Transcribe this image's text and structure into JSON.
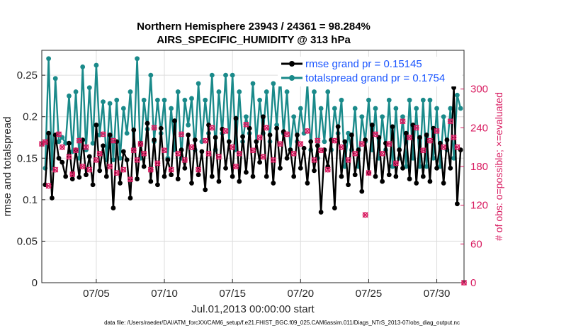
{
  "chart_data": {
    "type": "line",
    "title_line1": "Northern Hemisphere 23943 / 24361 = 98.284%",
    "title_line2": "AIRS_SPECIFIC_HUMIDITY @ 313 hPa",
    "xlabel": "Jul.01,2013 00:00:00 start",
    "ylabel": "rmse and totalspread",
    "y2label": "# of obs: o=possible; ×=evaluated",
    "footnote": "data file: /Users/raeder/DAI/ATM_forcXX/CAM6_setup/f.e21.FHIST_BGC.f09_025.CAM6assim.011/Diags_NTrS_2013-07/obs_diag_output.nc",
    "xlim": [
      1,
      32
    ],
    "ylim": [
      0,
      0.28
    ],
    "y2lim": [
      0,
      360
    ],
    "x_ticks": [
      5,
      10,
      15,
      20,
      25,
      30
    ],
    "x_tick_labels": [
      "07/05",
      "07/10",
      "07/15",
      "07/20",
      "07/25",
      "07/30"
    ],
    "y_ticks": [
      0,
      0.05,
      0.1,
      0.15,
      0.2,
      0.25
    ],
    "y_tick_labels": [
      "0",
      "0.05",
      "0.1",
      "0.15",
      "0.2",
      "0.25"
    ],
    "y2_ticks": [
      0,
      60,
      120,
      180,
      240,
      300
    ],
    "y2_tick_labels": [
      "0",
      "60",
      "120",
      "180",
      "240",
      "300"
    ],
    "grid": true,
    "legend_position": "top-right",
    "colors": {
      "rmse": "#000000",
      "spread": "#1a8a8a",
      "obs": "#d81b60",
      "legend_text": "#1a55ff"
    },
    "x": [
      1.25,
      1.5,
      1.75,
      2.0,
      2.25,
      2.5,
      2.75,
      3.0,
      3.25,
      3.5,
      3.75,
      4.0,
      4.25,
      4.5,
      4.75,
      5.0,
      5.25,
      5.5,
      5.75,
      6.0,
      6.25,
      6.5,
      6.75,
      7.0,
      7.25,
      7.5,
      7.75,
      8.0,
      8.25,
      8.5,
      8.75,
      9.0,
      9.25,
      9.5,
      9.75,
      10.0,
      10.25,
      10.5,
      10.75,
      11.0,
      11.25,
      11.5,
      11.75,
      12.0,
      12.25,
      12.5,
      12.75,
      13.0,
      13.25,
      13.5,
      13.75,
      14.0,
      14.25,
      14.5,
      14.75,
      15.0,
      15.25,
      15.5,
      15.75,
      16.0,
      16.25,
      16.5,
      16.75,
      17.0,
      17.25,
      17.5,
      17.75,
      18.0,
      18.25,
      18.5,
      18.75,
      19.0,
      19.25,
      19.5,
      19.75,
      20.0,
      20.25,
      20.5,
      20.75,
      21.0,
      21.25,
      21.5,
      21.75,
      22.0,
      22.25,
      22.5,
      22.75,
      23.0,
      23.25,
      23.5,
      23.75,
      24.0,
      24.25,
      24.5,
      24.75,
      25.0,
      25.25,
      25.5,
      25.75,
      26.0,
      26.25,
      26.5,
      26.75,
      27.0,
      27.25,
      27.5,
      27.75,
      28.0,
      28.25,
      28.5,
      28.75,
      29.0,
      29.25,
      29.5,
      29.75,
      30.0,
      30.25,
      30.5,
      30.75,
      31.0,
      31.25,
      31.5,
      31.75
    ],
    "series": [
      {
        "name": "rmse grand pr = 0.15145",
        "values": [
          0.118,
          0.18,
          0.102,
          0.178,
          0.15,
          0.145,
          0.128,
          0.168,
          0.125,
          0.16,
          0.127,
          0.172,
          0.13,
          0.152,
          0.118,
          0.19,
          0.135,
          0.165,
          0.128,
          0.178,
          0.09,
          0.17,
          0.12,
          0.158,
          0.148,
          0.102,
          0.184,
          0.125,
          0.168,
          0.14,
          0.192,
          0.122,
          0.172,
          0.118,
          0.186,
          0.128,
          0.148,
          0.13,
          0.195,
          0.125,
          0.16,
          0.138,
          0.178,
          0.12,
          0.172,
          0.13,
          0.158,
          0.112,
          0.19,
          0.128,
          0.175,
          0.122,
          0.185,
          0.138,
          0.17,
          0.128,
          0.198,
          0.122,
          0.176,
          0.133,
          0.186,
          0.128,
          0.17,
          0.145,
          0.2,
          0.128,
          0.178,
          0.12,
          0.186,
          0.138,
          0.182,
          0.15,
          0.16,
          0.128,
          0.178,
          0.138,
          0.162,
          0.12,
          0.17,
          0.135,
          0.165,
          0.085,
          0.16,
          0.14,
          0.172,
          0.09,
          0.188,
          0.128,
          0.17,
          0.118,
          0.178,
          0.13,
          0.16,
          0.11,
          0.172,
          0.132,
          0.19,
          0.128,
          0.175,
          0.122,
          0.168,
          0.13,
          0.188,
          0.128,
          0.16,
          0.138,
          0.18,
          0.125,
          0.19,
          0.12,
          0.175,
          0.128,
          0.178,
          0.122,
          0.186,
          0.138,
          0.168,
          0.12,
          0.172,
          0.138,
          0.235,
          0.095,
          0.16
        ],
        "color": "#000000"
      },
      {
        "name": "totalspread grand pr = 0.1754",
        "values": [
          0.138,
          0.27,
          0.138,
          0.246,
          0.17,
          0.175,
          0.168,
          0.225,
          0.158,
          0.23,
          0.15,
          0.26,
          0.16,
          0.235,
          0.168,
          0.262,
          0.178,
          0.218,
          0.148,
          0.216,
          0.148,
          0.22,
          0.15,
          0.21,
          0.18,
          0.23,
          0.16,
          0.27,
          0.15,
          0.22,
          0.185,
          0.25,
          0.17,
          0.22,
          0.18,
          0.22,
          0.15,
          0.21,
          0.16,
          0.23,
          0.15,
          0.22,
          0.19,
          0.222,
          0.16,
          0.24,
          0.17,
          0.22,
          0.18,
          0.25,
          0.16,
          0.23,
          0.18,
          0.25,
          0.17,
          0.25,
          0.16,
          0.23,
          0.17,
          0.2,
          0.18,
          0.24,
          0.17,
          0.22,
          0.18,
          0.23,
          0.17,
          0.24,
          0.19,
          0.25,
          0.18,
          0.23,
          0.16,
          0.2,
          0.17,
          0.21,
          0.18,
          0.24,
          0.16,
          0.23,
          0.15,
          0.21,
          0.17,
          0.23,
          0.16,
          0.21,
          0.18,
          0.22,
          0.14,
          0.18,
          0.16,
          0.21,
          0.14,
          0.2,
          0.17,
          0.22,
          0.16,
          0.21,
          0.15,
          0.2,
          0.16,
          0.22,
          0.14,
          0.21,
          0.15,
          0.2,
          0.14,
          0.22,
          0.15,
          0.21,
          0.14,
          0.22,
          0.14,
          0.22,
          0.15,
          0.21,
          0.14,
          0.2,
          0.16,
          0.21,
          0.15,
          0.226,
          0.21
        ],
        "color": "#1a8a8a"
      }
    ],
    "obs_counts_x": [
      1.0,
      1.25,
      1.5,
      2.0,
      2.25,
      2.5,
      3.0,
      3.25,
      3.5,
      3.75,
      4.0,
      4.25,
      4.5,
      5.0,
      5.25,
      5.5,
      6.0,
      6.25,
      6.5,
      7.0,
      7.5,
      7.75,
      8.0,
      8.25,
      8.5,
      9.0,
      9.25,
      9.5,
      10.0,
      10.5,
      11.0,
      11.25,
      11.5,
      12.0,
      12.5,
      13.0,
      13.25,
      13.5,
      14.0,
      14.5,
      15.0,
      15.25,
      15.5,
      16.0,
      16.5,
      17.0,
      17.25,
      17.5,
      18.0,
      18.5,
      19.0,
      19.5,
      20.0,
      20.5,
      21.0,
      21.25,
      21.5,
      22.0,
      22.5,
      23.0,
      23.5,
      24.0,
      24.5,
      24.75,
      25.0,
      25.5,
      26.0,
      26.5,
      27.0,
      27.5,
      28.0,
      28.5,
      29.0,
      29.5,
      30.0,
      30.5,
      31.0,
      31.25,
      31.5
    ],
    "obs_counts": [
      215,
      218,
      150,
      175,
      230,
      210,
      195,
      168,
      205,
      220,
      180,
      210,
      175,
      190,
      200,
      230,
      180,
      220,
      170,
      175,
      160,
      205,
      190,
      215,
      200,
      175,
      240,
      185,
      205,
      175,
      200,
      230,
      190,
      210,
      175,
      220,
      200,
      240,
      195,
      235,
      210,
      180,
      200,
      245,
      205,
      225,
      195,
      240,
      190,
      215,
      230,
      200,
      215,
      235,
      190,
      220,
      205,
      175,
      220,
      210,
      190,
      200,
      215,
      105,
      170,
      230,
      200,
      215,
      185,
      250,
      225,
      240,
      205,
      220,
      235,
      210,
      250,
      225,
      210
    ]
  }
}
